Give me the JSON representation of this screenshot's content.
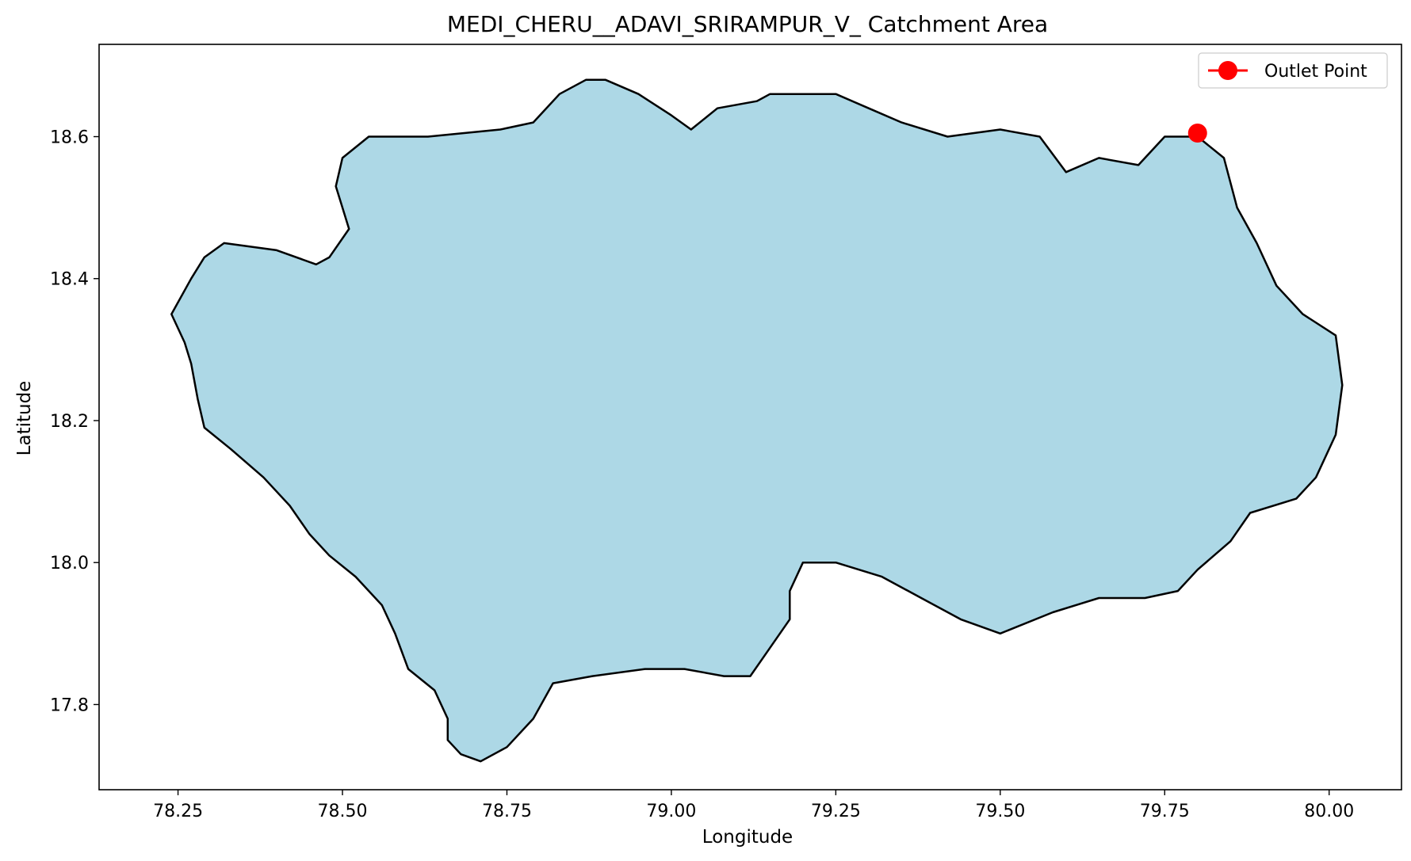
{
  "chart_data": {
    "type": "map",
    "title": "MEDI_CHERU__ADAVI_SRIRAMPUR_V_ Catchment Area",
    "xlabel": "Longitude",
    "ylabel": "Latitude",
    "xlim": [
      78.13,
      80.11
    ],
    "ylim": [
      17.68,
      18.73
    ],
    "xticks": [
      78.25,
      78.5,
      78.75,
      79.0,
      79.25,
      79.5,
      79.75,
      80.0
    ],
    "xtick_labels": [
      "78.25",
      "78.50",
      "78.75",
      "79.00",
      "79.25",
      "79.50",
      "79.75",
      "80.00"
    ],
    "yticks": [
      17.8,
      18.0,
      18.2,
      18.4,
      18.6
    ],
    "ytick_labels": [
      "17.8",
      "18.0",
      "18.2",
      "18.4",
      "18.6"
    ],
    "grid": false,
    "legend": {
      "placement": "top-right",
      "entries": [
        "Outlet Point"
      ]
    },
    "catchment": {
      "fill": "#add8e6",
      "edge": "#000000",
      "boundary": [
        [
          78.24,
          18.35
        ],
        [
          78.27,
          18.4
        ],
        [
          78.29,
          18.43
        ],
        [
          78.32,
          18.45
        ],
        [
          78.4,
          18.44
        ],
        [
          78.46,
          18.42
        ],
        [
          78.48,
          18.43
        ],
        [
          78.51,
          18.47
        ],
        [
          78.49,
          18.53
        ],
        [
          78.5,
          18.57
        ],
        [
          78.54,
          18.6
        ],
        [
          78.63,
          18.6
        ],
        [
          78.74,
          18.61
        ],
        [
          78.79,
          18.62
        ],
        [
          78.83,
          18.66
        ],
        [
          78.87,
          18.68
        ],
        [
          78.9,
          18.68
        ],
        [
          78.95,
          18.66
        ],
        [
          79.0,
          18.63
        ],
        [
          79.03,
          18.61
        ],
        [
          79.07,
          18.64
        ],
        [
          79.13,
          18.65
        ],
        [
          79.15,
          18.66
        ],
        [
          79.2,
          18.66
        ],
        [
          79.25,
          18.66
        ],
        [
          79.3,
          18.64
        ],
        [
          79.35,
          18.62
        ],
        [
          79.42,
          18.6
        ],
        [
          79.5,
          18.61
        ],
        [
          79.56,
          18.6
        ],
        [
          79.6,
          18.55
        ],
        [
          79.65,
          18.57
        ],
        [
          79.71,
          18.56
        ],
        [
          79.75,
          18.6
        ],
        [
          79.8,
          18.6
        ],
        [
          79.84,
          18.57
        ],
        [
          79.86,
          18.5
        ],
        [
          79.89,
          18.45
        ],
        [
          79.92,
          18.39
        ],
        [
          79.96,
          18.35
        ],
        [
          80.01,
          18.32
        ],
        [
          80.02,
          18.25
        ],
        [
          80.01,
          18.18
        ],
        [
          79.98,
          18.12
        ],
        [
          79.95,
          18.09
        ],
        [
          79.88,
          18.07
        ],
        [
          79.85,
          18.03
        ],
        [
          79.8,
          17.99
        ],
        [
          79.77,
          17.96
        ],
        [
          79.72,
          17.95
        ],
        [
          79.65,
          17.95
        ],
        [
          79.58,
          17.93
        ],
        [
          79.5,
          17.9
        ],
        [
          79.44,
          17.92
        ],
        [
          79.38,
          17.95
        ],
        [
          79.32,
          17.98
        ],
        [
          79.25,
          18.0
        ],
        [
          79.2,
          18.0
        ],
        [
          79.18,
          17.96
        ],
        [
          79.18,
          17.92
        ],
        [
          79.15,
          17.88
        ],
        [
          79.12,
          17.84
        ],
        [
          79.08,
          17.84
        ],
        [
          79.02,
          17.85
        ],
        [
          78.96,
          17.85
        ],
        [
          78.88,
          17.84
        ],
        [
          78.82,
          17.83
        ],
        [
          78.79,
          17.78
        ],
        [
          78.75,
          17.74
        ],
        [
          78.71,
          17.72
        ],
        [
          78.68,
          17.73
        ],
        [
          78.66,
          17.75
        ],
        [
          78.66,
          17.78
        ],
        [
          78.64,
          17.82
        ],
        [
          78.6,
          17.85
        ],
        [
          78.58,
          17.9
        ],
        [
          78.56,
          17.94
        ],
        [
          78.52,
          17.98
        ],
        [
          78.48,
          18.01
        ],
        [
          78.45,
          18.04
        ],
        [
          78.42,
          18.08
        ],
        [
          78.38,
          18.12
        ],
        [
          78.33,
          18.16
        ],
        [
          78.29,
          18.19
        ],
        [
          78.28,
          18.23
        ],
        [
          78.27,
          18.28
        ],
        [
          78.26,
          18.31
        ],
        [
          78.24,
          18.35
        ]
      ]
    },
    "series": [
      {
        "name": "Outlet Point",
        "color": "#ff0000",
        "marker": "circle",
        "points": [
          [
            79.8,
            18.605
          ]
        ]
      }
    ]
  }
}
